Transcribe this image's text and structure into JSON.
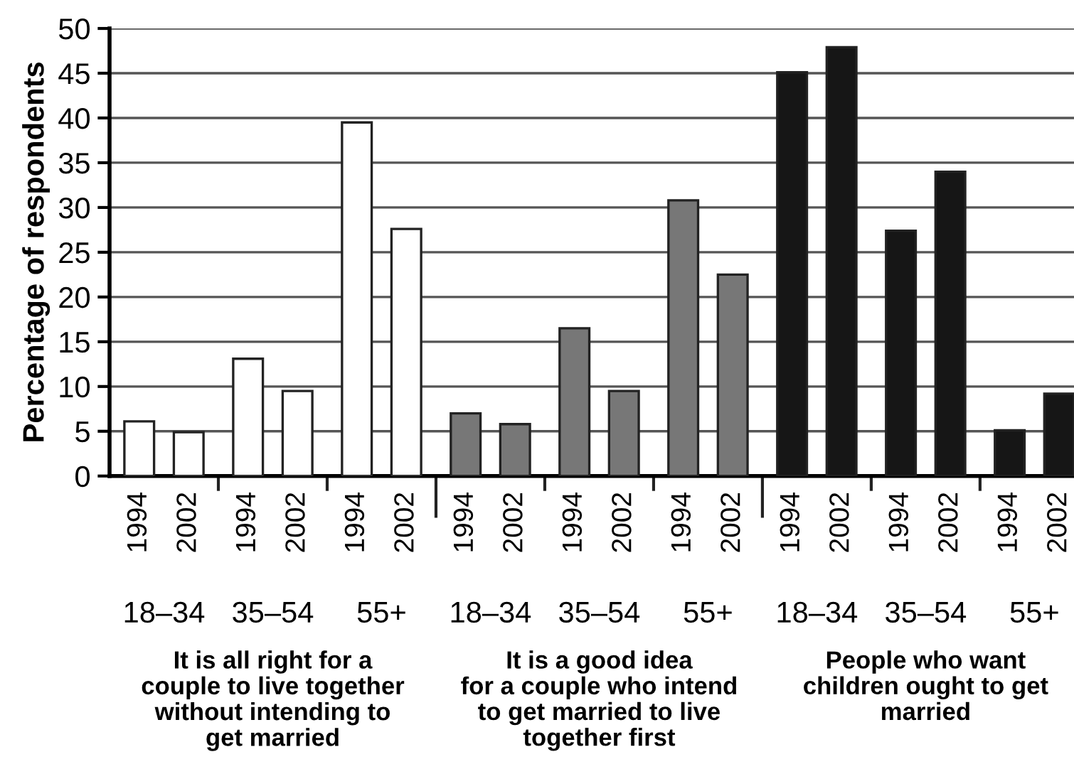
{
  "chart_data": {
    "type": "bar",
    "ylabel": "Percentage of respondents",
    "categories": [
      "1994",
      "2002",
      "1994",
      "2002",
      "1994",
      "2002",
      "1994",
      "2002",
      "1994",
      "2002",
      "1994",
      "2002",
      "1994",
      "2002",
      "1994",
      "2002",
      "1994",
      "2002"
    ],
    "values": [
      6.1,
      4.9,
      13.1,
      9.5,
      39.5,
      27.6,
      7.0,
      5.8,
      16.5,
      9.5,
      30.8,
      22.5,
      45.1,
      47.9,
      27.4,
      34.0,
      5.1,
      9.2
    ],
    "colors": [
      "#ffffff",
      "#ffffff",
      "#ffffff",
      "#ffffff",
      "#ffffff",
      "#ffffff",
      "#777777",
      "#777777",
      "#777777",
      "#777777",
      "#777777",
      "#777777",
      "#161616",
      "#161616",
      "#161616",
      "#161616",
      "#161616",
      "#161616"
    ],
    "annotations": [
      "18–34",
      "35–54",
      "55+",
      "18–34",
      "35–54",
      "55+",
      "18–34",
      "35–54",
      "55+",
      "It is all right for a\ncouple to live together\nwithout intending to\nget married",
      "It is a good idea\nfor a couple who intend\nto get married to live\ntogether first",
      "People who want\nchildren ought to get\nmarried"
    ],
    "ylim": [
      0,
      50
    ],
    "yticks": [
      0,
      5,
      10,
      15,
      20,
      25,
      30,
      35,
      40,
      45,
      50
    ],
    "grid": "y"
  }
}
